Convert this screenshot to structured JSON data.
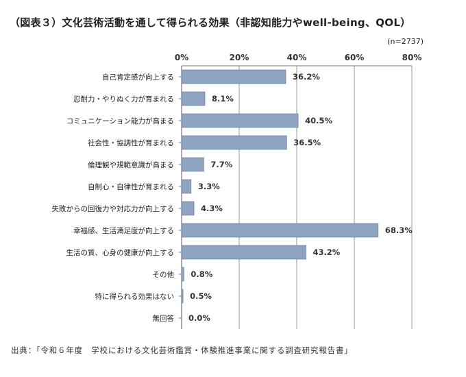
{
  "title": "（図表３）文化芸術活動を通して得られる効果（非認知能力やwell-being、QOL）",
  "sample_note": "(n=2737)",
  "source": "出典：「令和６年度　学校における文化芸術鑑賞・体験推進事業に関する調査研究報告書」",
  "chart_data": {
    "type": "bar",
    "orientation": "horizontal",
    "title": "（図表３）文化芸術活動を通して得られる効果（非認知能力やwell-being、QOL）",
    "categories": [
      "自己肯定感が向上する",
      "忍耐力・やりぬく力が育まれる",
      "コミュニケーション能力が高まる",
      "社会性・協調性が育まれる",
      "倫理観や規範意識が高まる",
      "自制心・自律性が育まれる",
      "失敗からの回復力や対応力が向上する",
      "幸福感、生活満足度が向上する",
      "生活の質、心身の健康が向上する",
      "その他",
      "特に得られる効果はない",
      "無回答"
    ],
    "values": [
      36.2,
      8.1,
      40.5,
      36.5,
      7.7,
      3.3,
      4.3,
      68.3,
      43.2,
      0.8,
      0.5,
      0.0
    ],
    "value_labels": [
      "36.2%",
      "8.1%",
      "40.5%",
      "36.5%",
      "7.7%",
      "3.3%",
      "4.3%",
      "68.3%",
      "43.2%",
      "0.8%",
      "0.5%",
      "0.0%"
    ],
    "xlim": [
      0,
      80
    ],
    "x_ticks": [
      0,
      20,
      40,
      60,
      80
    ],
    "x_tick_labels": [
      "0%",
      "20%",
      "40%",
      "60%",
      "80%"
    ],
    "axis_position": "top",
    "grid": true,
    "bar_color": "#8ea3bf",
    "bar_border": "#5f7594"
  }
}
